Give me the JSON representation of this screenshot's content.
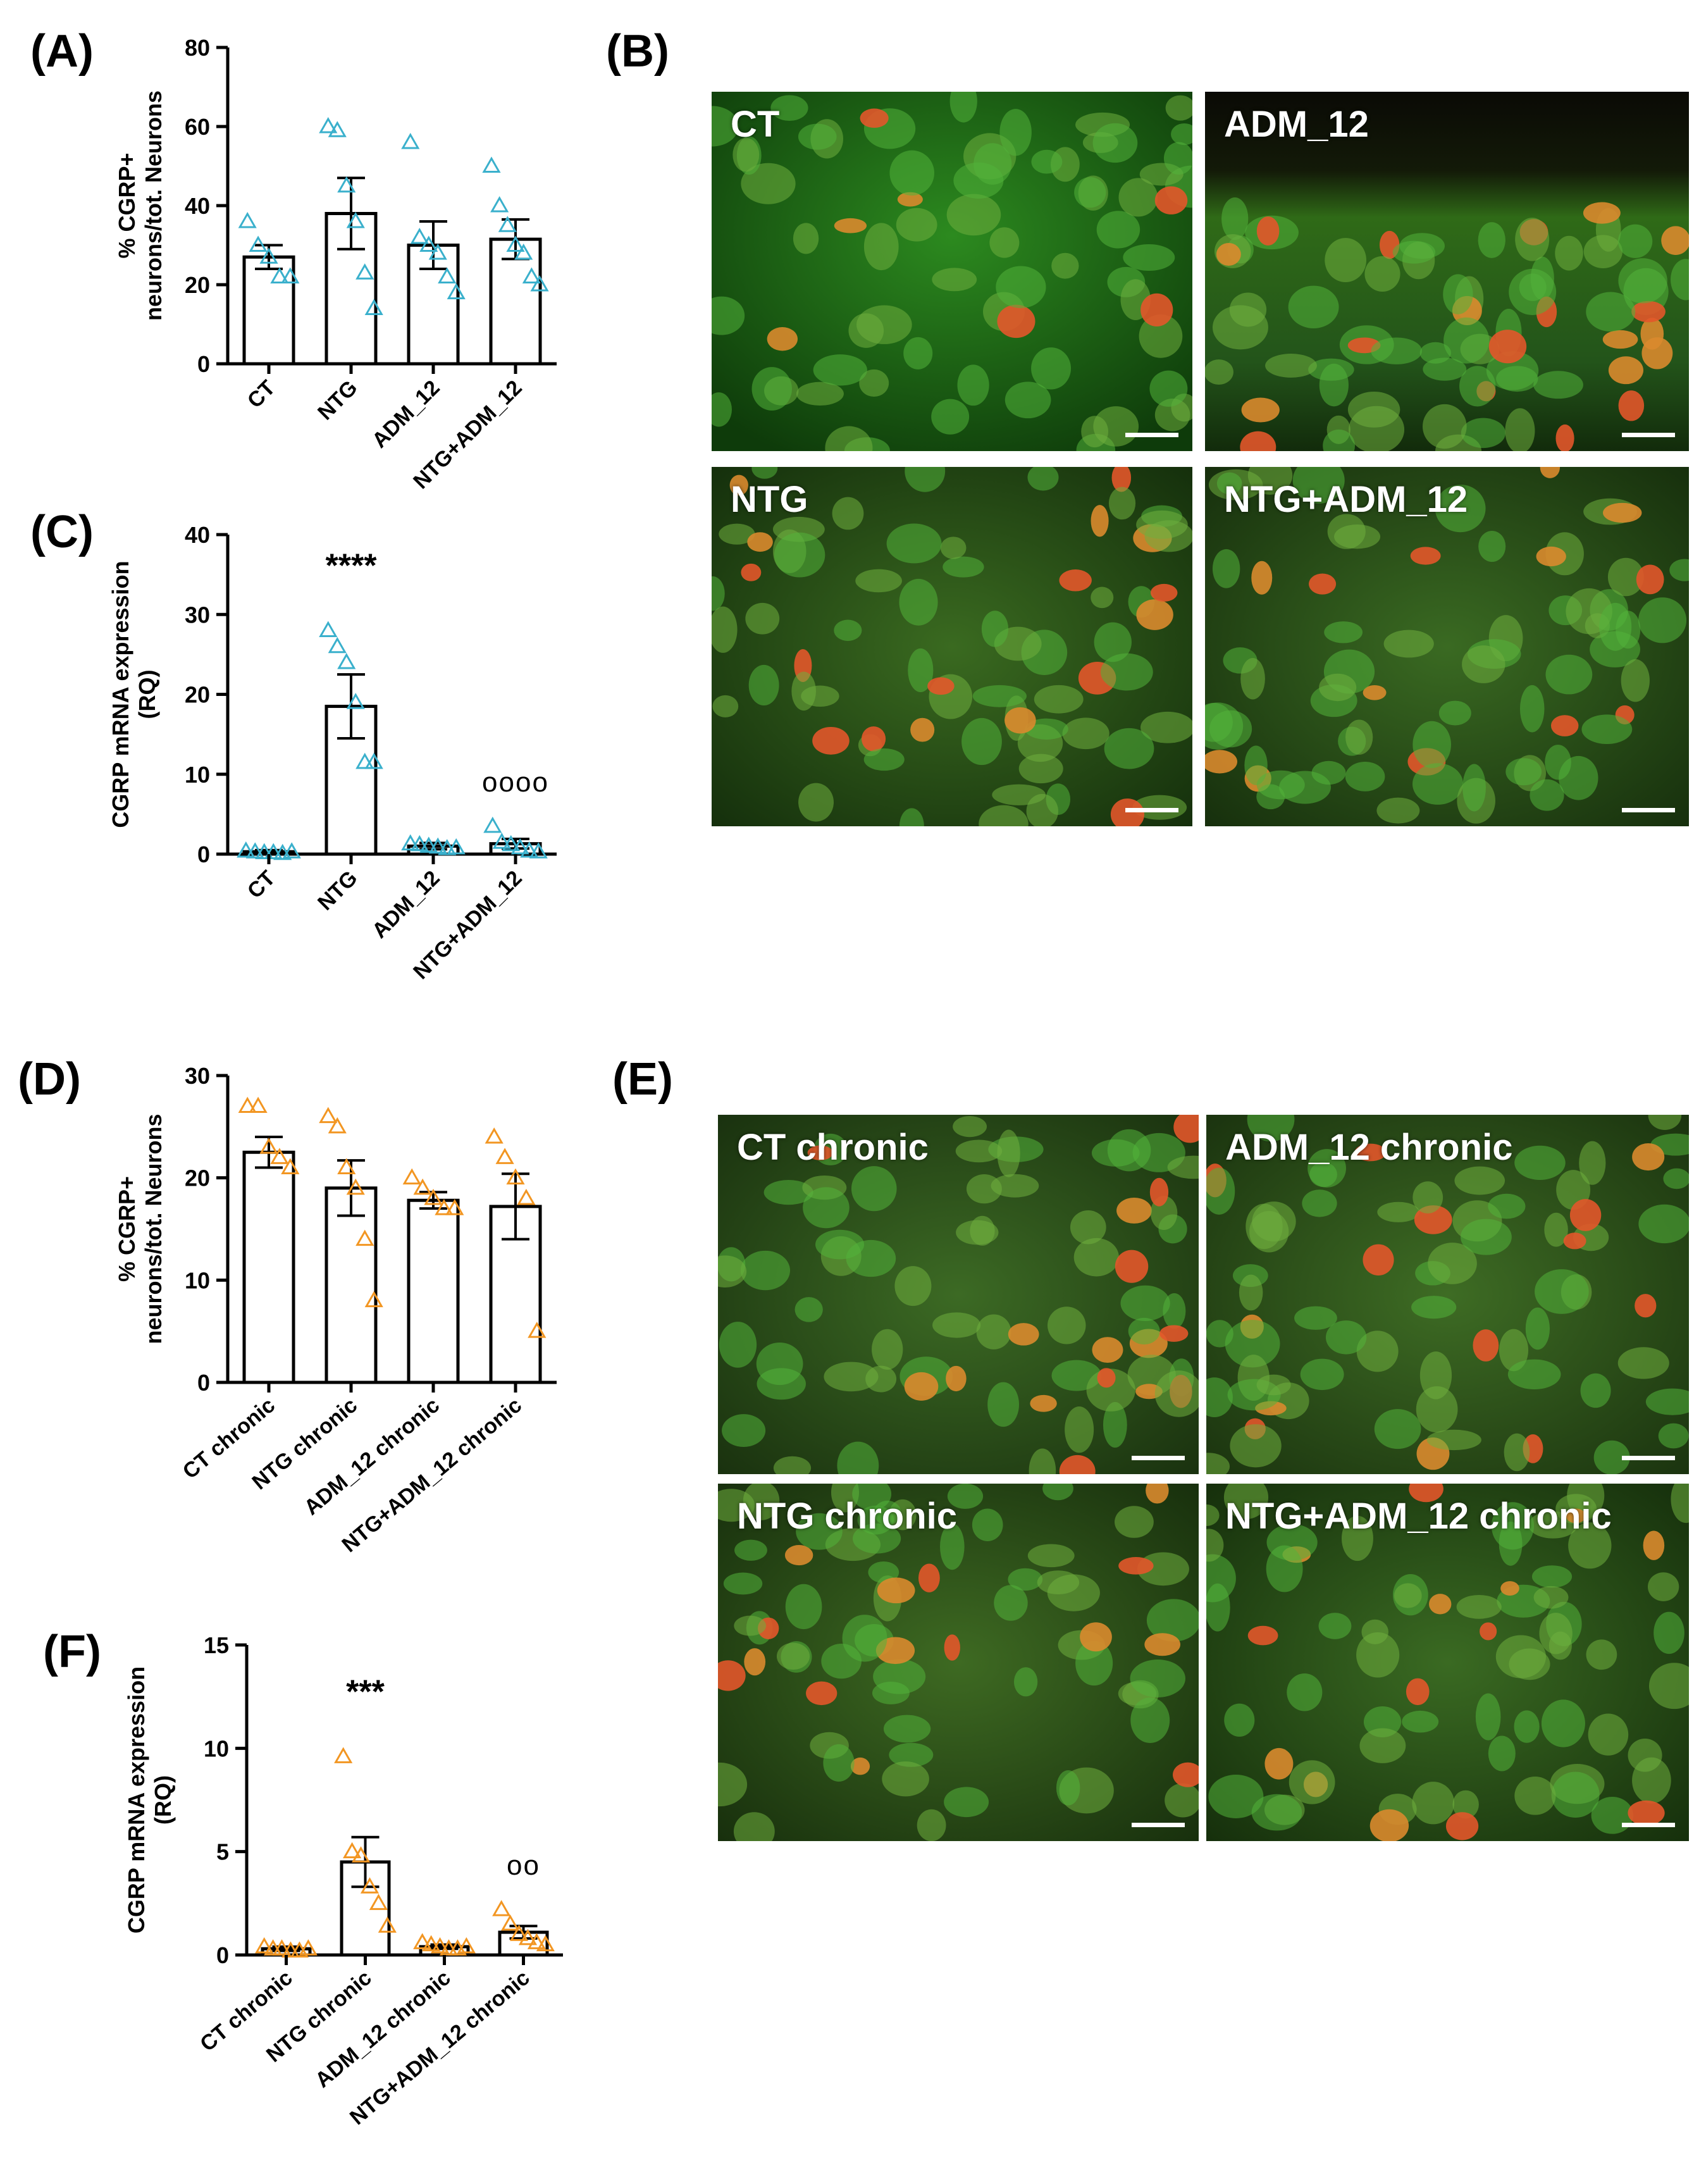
{
  "panels": {
    "A": "(A)",
    "B": "(B)",
    "C": "(C)",
    "D": "(D)",
    "E": "(E)",
    "F": "(F)"
  },
  "colors": {
    "acute_marker": "#3ab0cc",
    "chronic_marker": "#f29622"
  },
  "micrographs": {
    "B": [
      "CT",
      "ADM_12",
      "NTG",
      "NTG+ADM_12"
    ],
    "E": [
      "CT chronic",
      "ADM_12 chronic",
      "NTG chronic",
      "NTG+ADM_12 chronic"
    ]
  },
  "chart_data": [
    {
      "id": "A",
      "type": "bar",
      "ylabel": [
        "% CGRP+",
        "neurons/tot. Neurons"
      ],
      "ylim": [
        0,
        80
      ],
      "yticks": [
        0,
        20,
        40,
        60,
        80
      ],
      "categories": [
        "CT",
        "NTG",
        "ADM_12",
        "NTG+ADM_12"
      ],
      "values": [
        27,
        38,
        30,
        31.5
      ],
      "errors": [
        3,
        9,
        6,
        5
      ],
      "points": [
        [
          36,
          30,
          27,
          22,
          22
        ],
        [
          60,
          59,
          45,
          36,
          23,
          14
        ],
        [
          56,
          32,
          30,
          28,
          22,
          18
        ],
        [
          50,
          40,
          35,
          30,
          28,
          22,
          20
        ]
      ],
      "significance": [],
      "marker": "acute_marker"
    },
    {
      "id": "C",
      "type": "bar",
      "ylabel": [
        "CGRP mRNA expression",
        "(RQ)"
      ],
      "ylim": [
        0,
        40
      ],
      "yticks": [
        0,
        10,
        20,
        30,
        40
      ],
      "categories": [
        "CT",
        "NTG",
        "ADM_12",
        "NTG+ADM_12"
      ],
      "values": [
        0.3,
        18.5,
        1.0,
        1.3
      ],
      "errors": [
        0.2,
        4,
        0.4,
        0.6
      ],
      "points": [
        [
          0.4,
          0.3,
          0.2,
          0.2,
          0.1,
          0.3
        ],
        [
          28,
          26,
          24,
          19,
          11.5,
          11.5
        ],
        [
          1.3,
          1.2,
          1.0,
          0.9,
          0.7,
          0.8
        ],
        [
          3.5,
          1.5,
          1.2,
          0.8,
          0.4,
          0.3
        ]
      ],
      "significance": [
        "",
        "****",
        "",
        "oooo"
      ],
      "marker": "acute_marker"
    },
    {
      "id": "D",
      "type": "bar",
      "ylabel": [
        "% CGRP+",
        "neurons/tot. Neurons"
      ],
      "ylim": [
        0,
        30
      ],
      "yticks": [
        0,
        10,
        20,
        30
      ],
      "categories": [
        "CT chronic",
        "NTG chronic",
        "ADM_12 chronic",
        "NTG+ADM_12 chronic"
      ],
      "values": [
        22.5,
        19,
        17.8,
        17.2
      ],
      "errors": [
        1.5,
        2.7,
        0.8,
        3.2
      ],
      "points": [
        [
          27,
          27,
          23,
          22,
          21
        ],
        [
          26,
          25,
          21,
          19,
          14,
          8
        ],
        [
          20,
          19,
          18,
          17,
          17
        ],
        [
          24,
          22,
          20,
          18,
          5
        ]
      ],
      "significance": [],
      "marker": "chronic_marker"
    },
    {
      "id": "F",
      "type": "bar",
      "ylabel": [
        "CGRP mRNA expression",
        "(RQ)"
      ],
      "ylim": [
        0,
        15
      ],
      "yticks": [
        0,
        5,
        10,
        15
      ],
      "categories": [
        "CT chronic",
        "NTG chronic",
        "ADM_12 chronic",
        "NTG+ADM_12 chronic"
      ],
      "values": [
        0.3,
        4.5,
        0.4,
        1.1
      ],
      "errors": [
        0.1,
        1.2,
        0.1,
        0.3
      ],
      "points": [
        [
          0.4,
          0.3,
          0.3,
          0.2,
          0.2,
          0.3
        ],
        [
          9.6,
          5,
          4.8,
          3.3,
          2.5,
          1.4
        ],
        [
          0.6,
          0.5,
          0.4,
          0.3,
          0.3,
          0.4
        ],
        [
          2.2,
          1.5,
          1.0,
          0.8,
          0.6,
          0.5
        ]
      ],
      "significance": [
        "",
        "***",
        "",
        "oo"
      ],
      "marker": "chronic_marker"
    }
  ]
}
